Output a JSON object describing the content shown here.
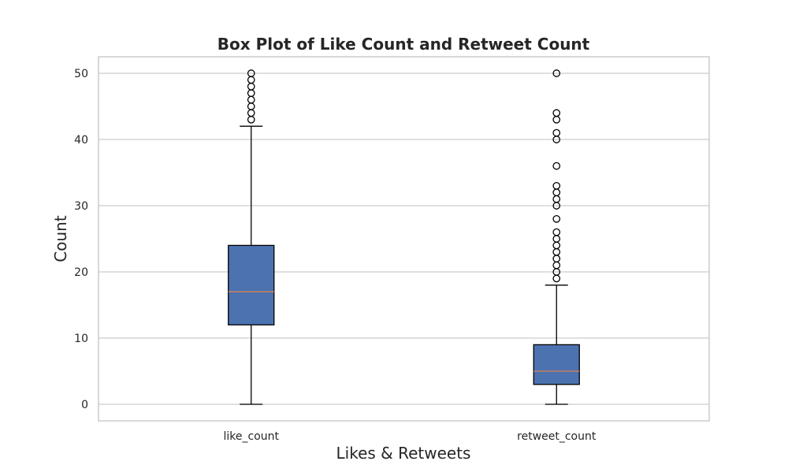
{
  "chart_data": {
    "type": "box",
    "title": "Box Plot of Like Count and Retweet Count",
    "xlabel": "Likes & Retweets",
    "ylabel": "Count",
    "ylim": [
      -2.5,
      52.5
    ],
    "yticks": [
      0,
      10,
      20,
      30,
      40,
      50
    ],
    "grid": true,
    "categories": [
      "like_count",
      "retweet_count"
    ],
    "series": [
      {
        "category": "like_count",
        "min": 0,
        "q1": 12,
        "median": 17,
        "q3": 24,
        "max": 42,
        "outliers": [
          43,
          44,
          45,
          46,
          47,
          48,
          49,
          50
        ]
      },
      {
        "category": "retweet_count",
        "min": 0,
        "q1": 3,
        "median": 5,
        "q3": 9,
        "max": 18,
        "outliers": [
          19,
          20,
          21,
          22,
          23,
          24,
          25,
          26,
          28,
          30,
          31,
          32,
          33,
          36,
          40,
          41,
          43,
          44,
          50
        ]
      }
    ],
    "colors": {
      "box_fill": "#4c72b0",
      "median": "#dd8452",
      "grid": "#cccccc",
      "frame": "#cccccc",
      "line": "#000000"
    }
  }
}
